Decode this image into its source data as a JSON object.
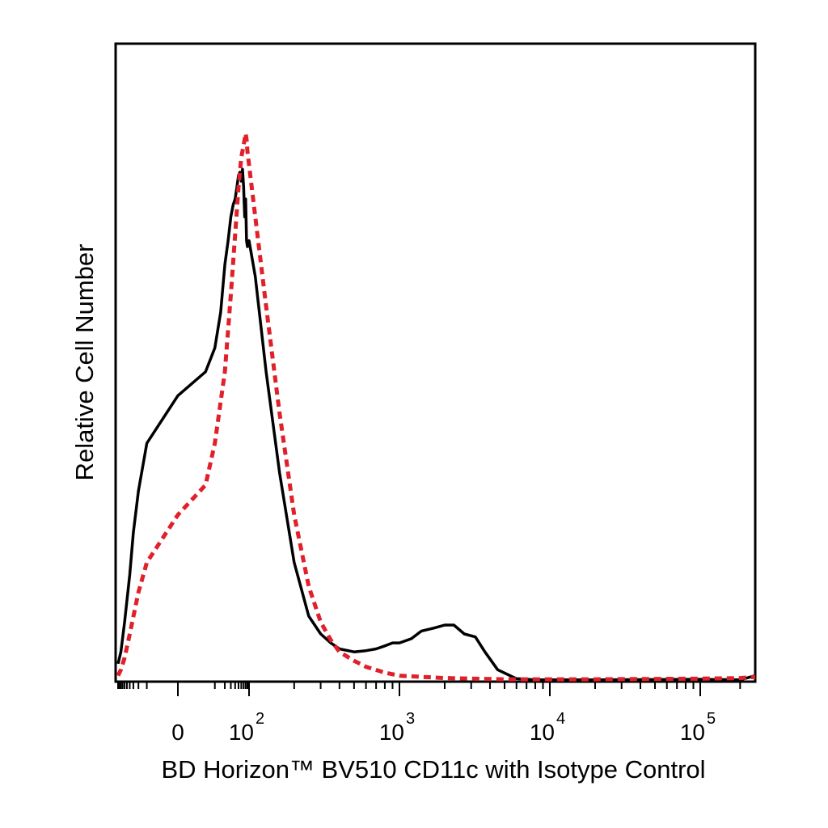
{
  "chart_data": {
    "type": "line",
    "title": "",
    "xlabel": "BD Horizon™ BV510 CD11c with Isotype Control",
    "ylabel": "Relative Cell Number",
    "x_scale": "biexponential",
    "x_tick_labels": [
      {
        "base": "0",
        "exp": ""
      },
      {
        "base": "10",
        "exp": "2"
      },
      {
        "base": "10",
        "exp": "3"
      },
      {
        "base": "10",
        "exp": "4"
      },
      {
        "base": "10",
        "exp": "5"
      }
    ],
    "grid": false,
    "legend": "none",
    "series": [
      {
        "style": "solid",
        "color": "#000000",
        "points": [
          [
            -100,
            3
          ],
          [
            -80,
            5
          ],
          [
            -60,
            10
          ],
          [
            -40,
            18
          ],
          [
            -30,
            25
          ],
          [
            -20,
            32
          ],
          [
            -10,
            40
          ],
          [
            0,
            48
          ],
          [
            5,
            52
          ],
          [
            10,
            56
          ],
          [
            15,
            62
          ],
          [
            20,
            70
          ],
          [
            25,
            74
          ],
          [
            30,
            78
          ],
          [
            35,
            80
          ],
          [
            40,
            81
          ],
          [
            45,
            83
          ],
          [
            50,
            85
          ],
          [
            55,
            85.5
          ],
          [
            60,
            84
          ],
          [
            65,
            86
          ],
          [
            70,
            83
          ],
          [
            75,
            78
          ],
          [
            80,
            81
          ],
          [
            85,
            74
          ],
          [
            90,
            73
          ],
          [
            100,
            74
          ],
          [
            110,
            68
          ],
          [
            130,
            52
          ],
          [
            160,
            35
          ],
          [
            200,
            20
          ],
          [
            250,
            11
          ],
          [
            300,
            8
          ],
          [
            350,
            6.5
          ],
          [
            400,
            5.5
          ],
          [
            500,
            5
          ],
          [
            600,
            5.2
          ],
          [
            700,
            5.5
          ],
          [
            800,
            6
          ],
          [
            900,
            6.5
          ],
          [
            1000,
            6.5
          ],
          [
            1200,
            7.2
          ],
          [
            1400,
            8.5
          ],
          [
            1700,
            9
          ],
          [
            2000,
            9.5
          ],
          [
            2300,
            9.5
          ],
          [
            2700,
            8
          ],
          [
            3200,
            7.5
          ],
          [
            3700,
            5
          ],
          [
            4500,
            2
          ],
          [
            6000,
            0.5
          ],
          [
            8000,
            0.3
          ],
          [
            20000,
            0.3
          ],
          [
            100000,
            0.4
          ],
          [
            200000,
            0.3
          ],
          [
            260000,
            1
          ]
        ]
      },
      {
        "style": "dashed",
        "color": "#e0202a",
        "points": [
          [
            -100,
            1
          ],
          [
            -80,
            2
          ],
          [
            -60,
            4
          ],
          [
            -40,
            8
          ],
          [
            -20,
            15
          ],
          [
            -10,
            20
          ],
          [
            0,
            28
          ],
          [
            5,
            33
          ],
          [
            10,
            40
          ],
          [
            20,
            52
          ],
          [
            30,
            65
          ],
          [
            40,
            75
          ],
          [
            50,
            83
          ],
          [
            60,
            88
          ],
          [
            70,
            90
          ],
          [
            80,
            92
          ],
          [
            85,
            91
          ],
          [
            90,
            89
          ],
          [
            110,
            78
          ],
          [
            130,
            63
          ],
          [
            160,
            45
          ],
          [
            200,
            28
          ],
          [
            250,
            16
          ],
          [
            300,
            10
          ],
          [
            350,
            7
          ],
          [
            400,
            5
          ],
          [
            500,
            3.5
          ],
          [
            600,
            2.5
          ],
          [
            800,
            1.5
          ],
          [
            1000,
            1
          ],
          [
            2000,
            0.6
          ],
          [
            5000,
            0.4
          ],
          [
            20000,
            0.4
          ],
          [
            100000,
            0.5
          ],
          [
            200000,
            0.6
          ],
          [
            260000,
            0.8
          ]
        ]
      }
    ],
    "x_range": [
      -100,
      260000
    ],
    "y_range": [
      0,
      100
    ]
  }
}
